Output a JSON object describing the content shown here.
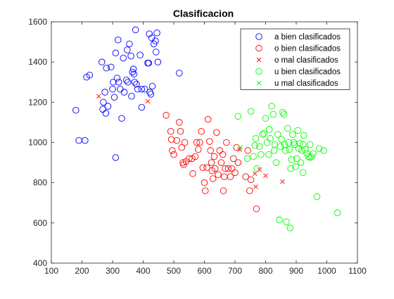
{
  "chart_data": {
    "type": "scatter",
    "title": "Clasificacion",
    "xlabel": "",
    "ylabel": "",
    "xlim": [
      100,
      1100
    ],
    "ylim": [
      400,
      1600
    ],
    "x_ticks": [
      "100",
      "200",
      "300",
      "400",
      "500",
      "600",
      "700",
      "800",
      "900",
      "1000",
      "1100"
    ],
    "y_ticks": [
      "400",
      "600",
      "800",
      "1000",
      "1200",
      "1400",
      "1600"
    ],
    "grid": false,
    "legend_position": "top-right",
    "series": [
      {
        "name": "a bien clasificados",
        "marker": "circle",
        "color": "#0000ff",
        "points": [
          [
            190,
            1010
          ],
          [
            210,
            1010
          ],
          [
            215,
            1325
          ],
          [
            225,
            1335
          ],
          [
            265,
            1400
          ],
          [
            268,
            1165
          ],
          [
            270,
            1200
          ],
          [
            275,
            1250
          ],
          [
            278,
            1145
          ],
          [
            280,
            1370
          ],
          [
            285,
            1180
          ],
          [
            295,
            1375
          ],
          [
            300,
            1265
          ],
          [
            302,
            1300
          ],
          [
            306,
            1225
          ],
          [
            310,
            925
          ],
          [
            310,
            1445
          ],
          [
            315,
            1320
          ],
          [
            318,
            1510
          ],
          [
            320,
            1300
          ],
          [
            325,
            1265
          ],
          [
            330,
            1120
          ],
          [
            335,
            1420
          ],
          [
            338,
            1250
          ],
          [
            345,
            1310
          ],
          [
            348,
            1460
          ],
          [
            350,
            1300
          ],
          [
            355,
            1490
          ],
          [
            360,
            1430
          ],
          [
            362,
            1230
          ],
          [
            368,
            1365
          ],
          [
            370,
            1340
          ],
          [
            372,
            1300
          ],
          [
            375,
            1560
          ],
          [
            378,
            1290
          ],
          [
            382,
            1265
          ],
          [
            390,
            1435
          ],
          [
            395,
            1265
          ],
          [
            405,
            1265
          ],
          [
            415,
            1395
          ],
          [
            418,
            1395
          ],
          [
            420,
            1540
          ],
          [
            422,
            1250
          ],
          [
            425,
            1240
          ],
          [
            428,
            1520
          ],
          [
            430,
            1280
          ],
          [
            435,
            1490
          ],
          [
            440,
            1505
          ],
          [
            442,
            1450
          ],
          [
            445,
            1545
          ],
          [
            448,
            1400
          ],
          [
            518,
            1345
          ],
          [
            180,
            1160
          ],
          [
            365,
            1350
          ],
          [
            395,
            1175
          ]
        ]
      },
      {
        "name": "o bien clasificados",
        "marker": "circle",
        "color": "#ff0000",
        "points": [
          [
            475,
            1135
          ],
          [
            490,
            1055
          ],
          [
            492,
            1015
          ],
          [
            495,
            960
          ],
          [
            500,
            940
          ],
          [
            510,
            1010
          ],
          [
            518,
            1100
          ],
          [
            522,
            1055
          ],
          [
            526,
            975
          ],
          [
            530,
            900
          ],
          [
            532,
            890
          ],
          [
            536,
            1000
          ],
          [
            540,
            905
          ],
          [
            550,
            920
          ],
          [
            560,
            920
          ],
          [
            562,
            845
          ],
          [
            570,
            930
          ],
          [
            575,
            1000
          ],
          [
            580,
            965
          ],
          [
            590,
            1055
          ],
          [
            595,
            875
          ],
          [
            600,
            800
          ],
          [
            603,
            760
          ],
          [
            608,
            875
          ],
          [
            612,
            1115
          ],
          [
            617,
            1005
          ],
          [
            620,
            960
          ],
          [
            623,
            900
          ],
          [
            625,
            860
          ],
          [
            628,
            820
          ],
          [
            632,
            930
          ],
          [
            635,
            870
          ],
          [
            640,
            1050
          ],
          [
            645,
            840
          ],
          [
            650,
            960
          ],
          [
            655,
            900
          ],
          [
            660,
            940
          ],
          [
            662,
            760
          ],
          [
            665,
            830
          ],
          [
            668,
            870
          ],
          [
            672,
            1000
          ],
          [
            678,
            870
          ],
          [
            685,
            830
          ],
          [
            690,
            870
          ],
          [
            695,
            920
          ],
          [
            700,
            850
          ],
          [
            705,
            975
          ],
          [
            710,
            900
          ],
          [
            735,
            830
          ],
          [
            742,
            960
          ],
          [
            748,
            760
          ],
          [
            752,
            815
          ],
          [
            770,
            670
          ],
          [
            585,
            1000
          ]
        ]
      },
      {
        "name": "o mal clasificados",
        "marker": "x",
        "color": "#ff0000",
        "points": [
          [
            255,
            1230
          ],
          [
            415,
            1205
          ],
          [
            765,
            845
          ],
          [
            768,
            780
          ],
          [
            780,
            865
          ],
          [
            800,
            835
          ],
          [
            855,
            805
          ],
          [
            715,
            965
          ]
        ]
      },
      {
        "name": "u bien clasificados",
        "marker": "circle",
        "color": "#00ff00",
        "points": [
          [
            710,
            1130
          ],
          [
            740,
            920
          ],
          [
            752,
            1155
          ],
          [
            760,
            930
          ],
          [
            765,
            985
          ],
          [
            768,
            1020
          ],
          [
            772,
            870
          ],
          [
            780,
            980
          ],
          [
            785,
            940
          ],
          [
            790,
            1040
          ],
          [
            795,
            1045
          ],
          [
            800,
            1120
          ],
          [
            805,
            1000
          ],
          [
            810,
            940
          ],
          [
            812,
            1065
          ],
          [
            815,
            1020
          ],
          [
            820,
            1180
          ],
          [
            825,
            1140
          ],
          [
            828,
            960
          ],
          [
            830,
            990
          ],
          [
            835,
            900
          ],
          [
            840,
            1040
          ],
          [
            845,
            615
          ],
          [
            848,
            980
          ],
          [
            852,
            1015
          ],
          [
            856,
            1150
          ],
          [
            860,
            1140
          ],
          [
            862,
            990
          ],
          [
            865,
            960
          ],
          [
            868,
            605
          ],
          [
            872,
            1070
          ],
          [
            875,
            1000
          ],
          [
            878,
            965
          ],
          [
            880,
            575
          ],
          [
            882,
            870
          ],
          [
            885,
            915
          ],
          [
            888,
            1040
          ],
          [
            892,
            1000
          ],
          [
            895,
            990
          ],
          [
            898,
            880
          ],
          [
            902,
            920
          ],
          [
            905,
            1060
          ],
          [
            908,
            970
          ],
          [
            912,
            995
          ],
          [
            915,
            900
          ],
          [
            918,
            960
          ],
          [
            922,
            850
          ],
          [
            925,
            1035
          ],
          [
            930,
            965
          ],
          [
            935,
            945
          ],
          [
            940,
            930
          ],
          [
            945,
            990
          ],
          [
            950,
            930
          ],
          [
            955,
            945
          ],
          [
            968,
            730
          ],
          [
            975,
            970
          ],
          [
            990,
            960
          ],
          [
            1035,
            650
          ],
          [
            945,
            925
          ],
          [
            922,
            990
          ]
        ]
      },
      {
        "name": "u mal clasificados",
        "marker": "x",
        "color": "#00ff00",
        "points": [
          [
            718,
            975
          ]
        ]
      }
    ]
  }
}
